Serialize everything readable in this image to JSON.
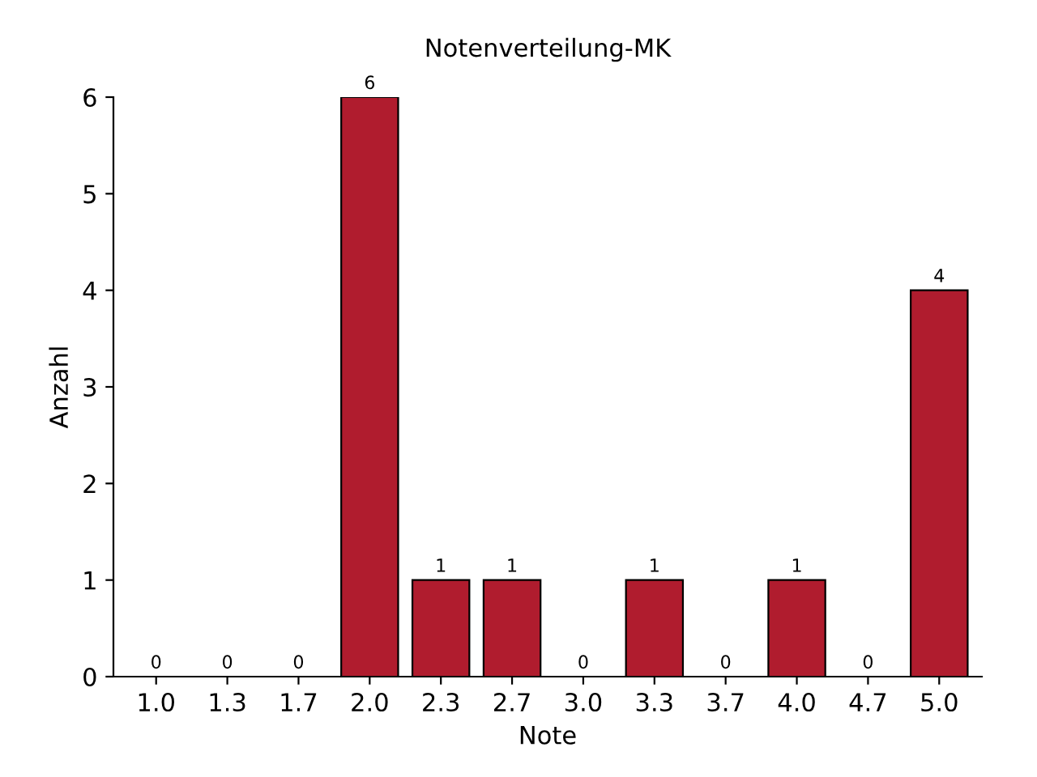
{
  "chart_data": {
    "type": "bar",
    "title": "Notenverteilung-MK",
    "xlabel": "Note",
    "ylabel": "Anzahl",
    "categories": [
      "1.0",
      "1.3",
      "1.7",
      "2.0",
      "2.3",
      "2.7",
      "3.0",
      "3.3",
      "3.7",
      "4.0",
      "4.7",
      "5.0"
    ],
    "values": [
      0,
      0,
      0,
      6,
      1,
      1,
      0,
      1,
      0,
      1,
      0,
      4
    ],
    "color": "#b01c2e",
    "ylim": [
      0,
      6
    ],
    "yticks": [
      0,
      1,
      2,
      3,
      4,
      5,
      6
    ],
    "grid": false,
    "data_labels": true
  }
}
